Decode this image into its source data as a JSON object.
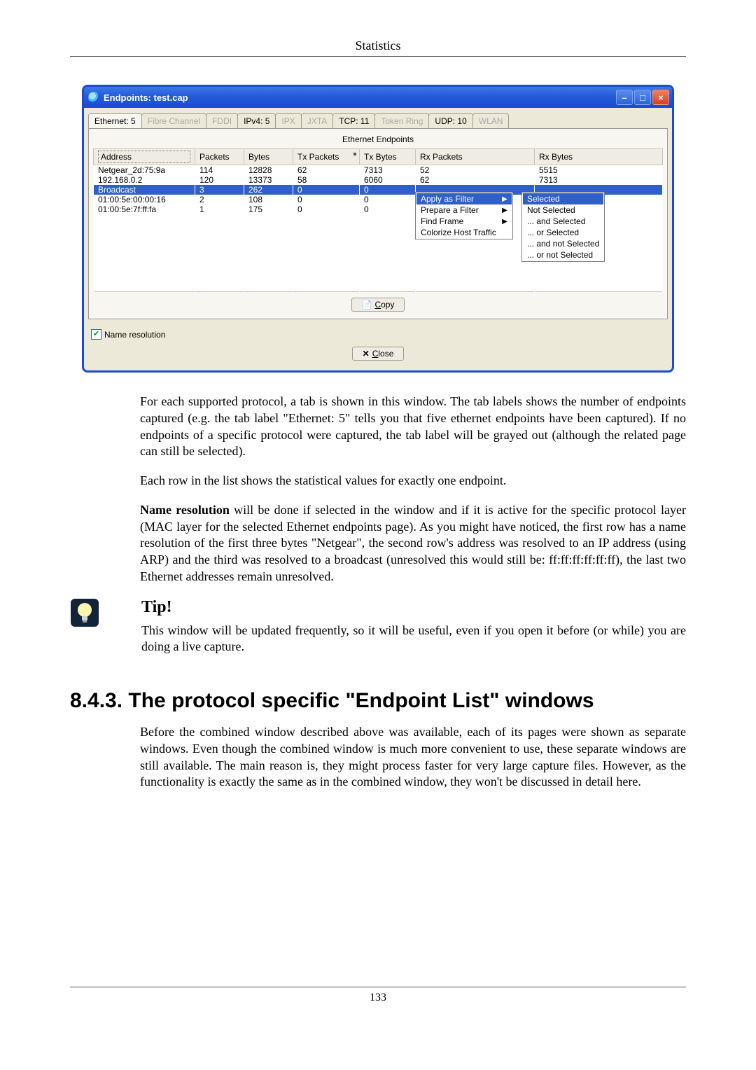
{
  "header": {
    "chapter_title": "Statistics"
  },
  "window": {
    "title": "Endpoints: test.cap",
    "controls": {
      "min": "–",
      "max": "□",
      "close": "×"
    },
    "tabs": [
      {
        "label": "Ethernet: 5",
        "state": "active"
      },
      {
        "label": "Fibre Channel",
        "state": "disabled"
      },
      {
        "label": "FDDI",
        "state": "disabled"
      },
      {
        "label": "IPv4: 5",
        "state": "normal"
      },
      {
        "label": "IPX",
        "state": "disabled"
      },
      {
        "label": "JXTA",
        "state": "disabled"
      },
      {
        "label": "TCP: 11",
        "state": "normal"
      },
      {
        "label": "Token Ring",
        "state": "disabled"
      },
      {
        "label": "UDP: 10",
        "state": "normal"
      },
      {
        "label": "WLAN",
        "state": "disabled"
      }
    ],
    "panel_caption": "Ethernet Endpoints",
    "columns": [
      "Address",
      "Packets",
      "Bytes",
      "Tx Packets",
      "Tx Bytes",
      "Rx Packets",
      "Rx Bytes"
    ],
    "rows": [
      {
        "cells": [
          "Netgear_2d:75:9a",
          "114",
          "12828",
          "62",
          "7313",
          "52",
          "5515"
        ],
        "selected": false
      },
      {
        "cells": [
          "192.168.0.2",
          "120",
          "13373",
          "58",
          "6060",
          "62",
          "7313"
        ],
        "selected": false
      },
      {
        "cells": [
          "Broadcast",
          "3",
          "262",
          "0",
          "0",
          "",
          ""
        ],
        "selected": true
      },
      {
        "cells": [
          "01:00:5e:00:00:16",
          "2",
          "108",
          "0",
          "0",
          "",
          ""
        ],
        "selected": false
      },
      {
        "cells": [
          "01:00:5e:7f:ff:fa",
          "1",
          "175",
          "0",
          "0",
          "",
          ""
        ],
        "selected": false
      }
    ],
    "context_menu": {
      "items": [
        {
          "label": "Apply as Filter",
          "highlight": true,
          "arrow": true
        },
        {
          "label": "Prepare a Filter",
          "highlight": false,
          "arrow": true
        },
        {
          "label": "Find Frame",
          "highlight": false,
          "arrow": true
        },
        {
          "label": "Colorize Host Traffic",
          "highlight": false,
          "arrow": false
        }
      ]
    },
    "sub_menu": {
      "items": [
        "Selected",
        "Not Selected",
        "... and Selected",
        "... or Selected",
        "... and not Selected",
        "... or not Selected"
      ]
    },
    "copy_button": "Copy",
    "name_resolution": "Name resolution",
    "close_button": "Close"
  },
  "paragraphs": {
    "p1": "For each supported protocol, a tab is shown in this window. The tab labels shows the number of endpoints captured (e.g. the tab label \"Ethernet: 5\" tells you that five ethernet endpoints have been captured). If no endpoints of a specific protocol were captured, the tab label will be grayed out (although the related page can still be selected).",
    "p2": "Each row in the list shows the statistical values for exactly one endpoint.",
    "p3a": "Name resolution",
    "p3b": " will be done if selected in the window and if it is active for the specific protocol layer (MAC layer for the selected Ethernet endpoints page). As you might have noticed, the first row has a name resolution of the first three bytes \"Netgear\", the second row's address was resolved to an IP address (using ARP) and the third was resolved to a broadcast (unresolved this would still be: ff:ff:ff:ff:ff:ff), the last two Ethernet addresses remain unresolved."
  },
  "tip": {
    "title": "Tip!",
    "body": "This window will be updated frequently, so it will be useful, even if you open it before (or while) you are doing a live capture."
  },
  "section": {
    "heading": "8.4.3. The protocol specific \"Endpoint List\" windows",
    "body": "Before the combined window described above was available, each of its pages were shown as separate windows. Even though the combined window is much more convenient to use, these separate windows are still available. The main reason is, they might process faster for very large capture files. However, as the functionality is exactly the same as in the combined window, they won't be discussed in detail here."
  },
  "page_number": "133"
}
